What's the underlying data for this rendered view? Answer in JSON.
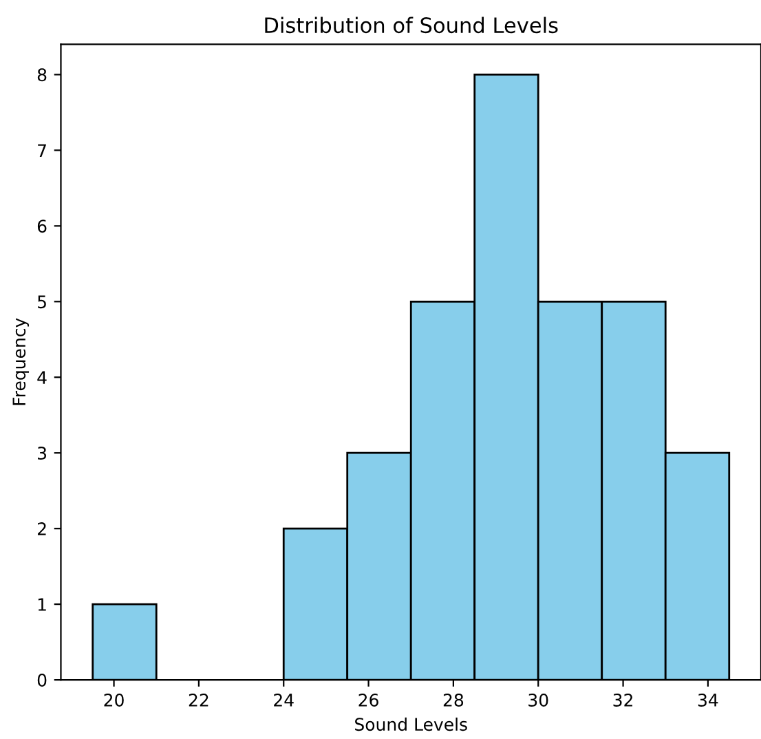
{
  "chart_data": {
    "type": "histogram",
    "title": "Distribution of Sound Levels",
    "xlabel": "Sound Levels",
    "ylabel": "Frequency",
    "bins": [
      19.5,
      21.0,
      22.5,
      24.0,
      25.5,
      27.0,
      28.5,
      30.0,
      31.5,
      33.0,
      34.5
    ],
    "values": [
      1,
      0,
      0,
      2,
      3,
      5,
      8,
      5,
      5,
      3
    ],
    "color": "#87ceeb",
    "xlim": [
      18.75,
      35.25
    ],
    "xticks": [
      20,
      22,
      24,
      26,
      28,
      30,
      32,
      34
    ],
    "ylim": [
      0,
      8.4
    ],
    "yticks": [
      0,
      1,
      2,
      3,
      4,
      5,
      6,
      7,
      8
    ],
    "grid": false
  }
}
